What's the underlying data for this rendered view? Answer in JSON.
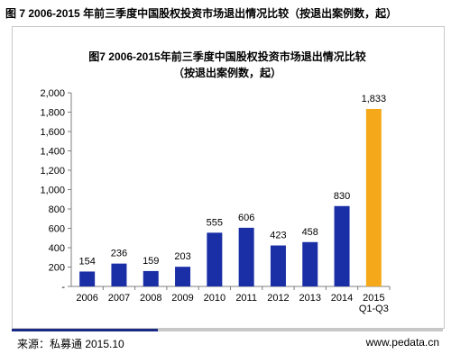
{
  "page_title": "图 7 2006-2015 年前三季度中国股权投资市场退出情况比较（按退出案例数，起）",
  "chart_title_line1": "图7 2006-2015年前三季度中国股权投资市场退出情况比较",
  "chart_title_line2": "（按退出案例数，起）",
  "footer": {
    "source": "来源：私募通 2015.10",
    "url": "www.pedata.cn"
  },
  "colors": {
    "bar": "#1a2ea6",
    "highlight_bar": "#f5a91a",
    "axis": "#7f7f7f",
    "accent_rule": "#1a2b86"
  },
  "chart_data": {
    "type": "bar",
    "title": "图7 2006-2015年前三季度中国股权投资市场退出情况比较",
    "subtitle": "（按退出案例数，起）",
    "categories": [
      [
        "2006"
      ],
      [
        "2007"
      ],
      [
        "2008"
      ],
      [
        "2009"
      ],
      [
        "2010"
      ],
      [
        "2011"
      ],
      [
        "2012"
      ],
      [
        "2013"
      ],
      [
        "2014"
      ],
      [
        "2015",
        "Q1-Q3"
      ]
    ],
    "values": [
      154,
      236,
      159,
      203,
      555,
      606,
      423,
      458,
      830,
      1833
    ],
    "data_labels": [
      "154",
      "236",
      "159",
      "203",
      "555",
      "606",
      "423",
      "458",
      "830",
      "1,833"
    ],
    "highlight_index": 9,
    "ylim": [
      0,
      2000
    ],
    "yticks": [
      0,
      200,
      400,
      600,
      800,
      1000,
      1200,
      1400,
      1600,
      1800,
      2000
    ],
    "ytick_labels": [
      "-",
      "200",
      "400",
      "600",
      "800",
      "1,000",
      "1,200",
      "1,400",
      "1,600",
      "1,800",
      "2,000"
    ],
    "xlabel": "",
    "ylabel": "",
    "grid": false,
    "legend": "none"
  }
}
